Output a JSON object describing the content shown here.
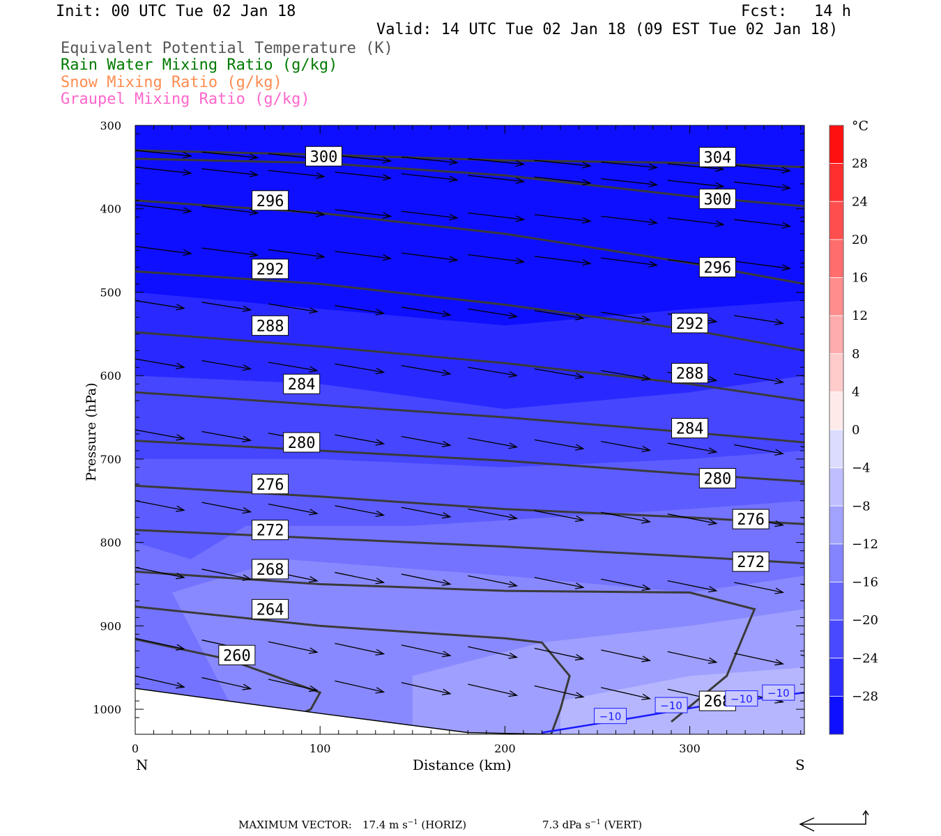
{
  "header": {
    "init": "Init: 00 UTC Tue 02 Jan 18",
    "fcst_label": "Fcst:",
    "fcst_value": "14 h",
    "valid": "Valid: 14 UTC Tue 02 Jan 18 (09 EST Tue 02 Jan 18)"
  },
  "legend": {
    "theta_e": "Equivalent Potential Temperature (K)",
    "rain": "Rain Water Mixing Ratio (g/kg)",
    "snow": "Snow Mixing Ratio (g/kg)",
    "graupel": "Graupel Mixing Ratio (g/kg)"
  },
  "colors": {
    "theta_e": "#555555",
    "rain": "#007a00",
    "snow": "#ff8c50",
    "graupel": "#ff66cc",
    "temp_contour": "#1a1aff",
    "contour_line": "#3a3a3a"
  },
  "footer": {
    "max_vector_label": "MAXIMUM VECTOR:",
    "horiz_value": "17.4 m s",
    "horiz_unit": "(HORIZ)",
    "vert_value": "7.3 dPa s",
    "vert_unit": "(VERT)"
  },
  "chart_data": {
    "type": "cross-section",
    "xlabel": "Distance (km)",
    "ylabel": "Pressure (hPa)",
    "x_left_label": "N",
    "x_right_label": "S",
    "xlim": [
      0,
      362
    ],
    "ylim": [
      1030,
      300
    ],
    "xticks": [
      0,
      100,
      200,
      300
    ],
    "yticks": [
      300,
      400,
      500,
      600,
      700,
      800,
      900,
      1000
    ],
    "colorbar": {
      "unit": "°C",
      "range": [
        -32,
        32
      ],
      "step": 4,
      "tick_labels": [
        "28",
        "24",
        "20",
        "16",
        "12",
        "8",
        "4",
        "0",
        "−4",
        "−8",
        "−12",
        "−16",
        "−20",
        "−24",
        "−28"
      ]
    },
    "theta_e_contours": [
      {
        "value": 304,
        "points": [
          [
            0,
            330
          ],
          [
            100,
            335
          ],
          [
            200,
            342
          ],
          [
            300,
            345
          ],
          [
            362,
            350
          ]
        ]
      },
      {
        "value": 300,
        "points": [
          [
            0,
            340
          ],
          [
            100,
            345
          ],
          [
            200,
            360
          ],
          [
            300,
            385
          ],
          [
            362,
            397
          ]
        ]
      },
      {
        "value": 296,
        "points": [
          [
            0,
            390
          ],
          [
            100,
            405
          ],
          [
            200,
            430
          ],
          [
            300,
            465
          ],
          [
            362,
            490
          ]
        ]
      },
      {
        "value": 292,
        "points": [
          [
            0,
            475
          ],
          [
            100,
            490
          ],
          [
            200,
            515
          ],
          [
            300,
            545
          ],
          [
            362,
            570
          ]
        ]
      },
      {
        "value": 288,
        "points": [
          [
            0,
            548
          ],
          [
            100,
            565
          ],
          [
            200,
            585
          ],
          [
            300,
            610
          ],
          [
            362,
            630
          ]
        ]
      },
      {
        "value": 284,
        "points": [
          [
            0,
            620
          ],
          [
            100,
            635
          ],
          [
            200,
            650
          ],
          [
            300,
            668
          ],
          [
            362,
            680
          ]
        ]
      },
      {
        "value": 280,
        "points": [
          [
            0,
            678
          ],
          [
            100,
            690
          ],
          [
            200,
            702
          ],
          [
            300,
            718
          ],
          [
            362,
            727
          ]
        ]
      },
      {
        "value": 276,
        "points": [
          [
            0,
            732
          ],
          [
            100,
            745
          ],
          [
            200,
            760
          ],
          [
            300,
            770
          ],
          [
            362,
            778
          ]
        ]
      },
      {
        "value": 272,
        "points": [
          [
            0,
            785
          ],
          [
            100,
            795
          ],
          [
            200,
            805
          ],
          [
            300,
            817
          ],
          [
            362,
            825
          ]
        ]
      },
      {
        "value": 268,
        "points": [
          [
            0,
            835
          ],
          [
            100,
            850
          ],
          [
            200,
            858
          ],
          [
            300,
            860
          ],
          [
            335,
            880
          ],
          [
            320,
            960
          ],
          [
            290,
            1015
          ]
        ]
      },
      {
        "value": 264,
        "points": [
          [
            0,
            877
          ],
          [
            100,
            900
          ],
          [
            200,
            915
          ],
          [
            220,
            920
          ],
          [
            235,
            960
          ],
          [
            230,
            1000
          ],
          [
            225,
            1030
          ]
        ]
      },
      {
        "value": 260,
        "points": [
          [
            0,
            916
          ],
          [
            50,
            940
          ],
          [
            100,
            980
          ],
          [
            95,
            1000
          ],
          [
            90,
            1005
          ]
        ]
      }
    ],
    "theta_e_label_values": [
      "304",
      "300",
      "300",
      "296",
      "296",
      "292",
      "292",
      "288",
      "288",
      "284",
      "284",
      "280",
      "280",
      "276",
      "276",
      "272",
      "272",
      "268",
      "268",
      "264",
      "260"
    ],
    "temperature_contours": [
      {
        "value": -10,
        "points": [
          [
            220,
            1028
          ],
          [
            270,
            1010
          ],
          [
            310,
            995
          ],
          [
            362,
            980
          ]
        ],
        "labels": [
          "−10",
          "−10",
          "−10",
          "−10"
        ]
      }
    ],
    "wind_vectors": "rows of rightward-pointing vectors at each pressure level, strengthening aloft",
    "max_vector": {
      "horiz_ms": 17.4,
      "vert_dPa_s": 7.3
    }
  }
}
